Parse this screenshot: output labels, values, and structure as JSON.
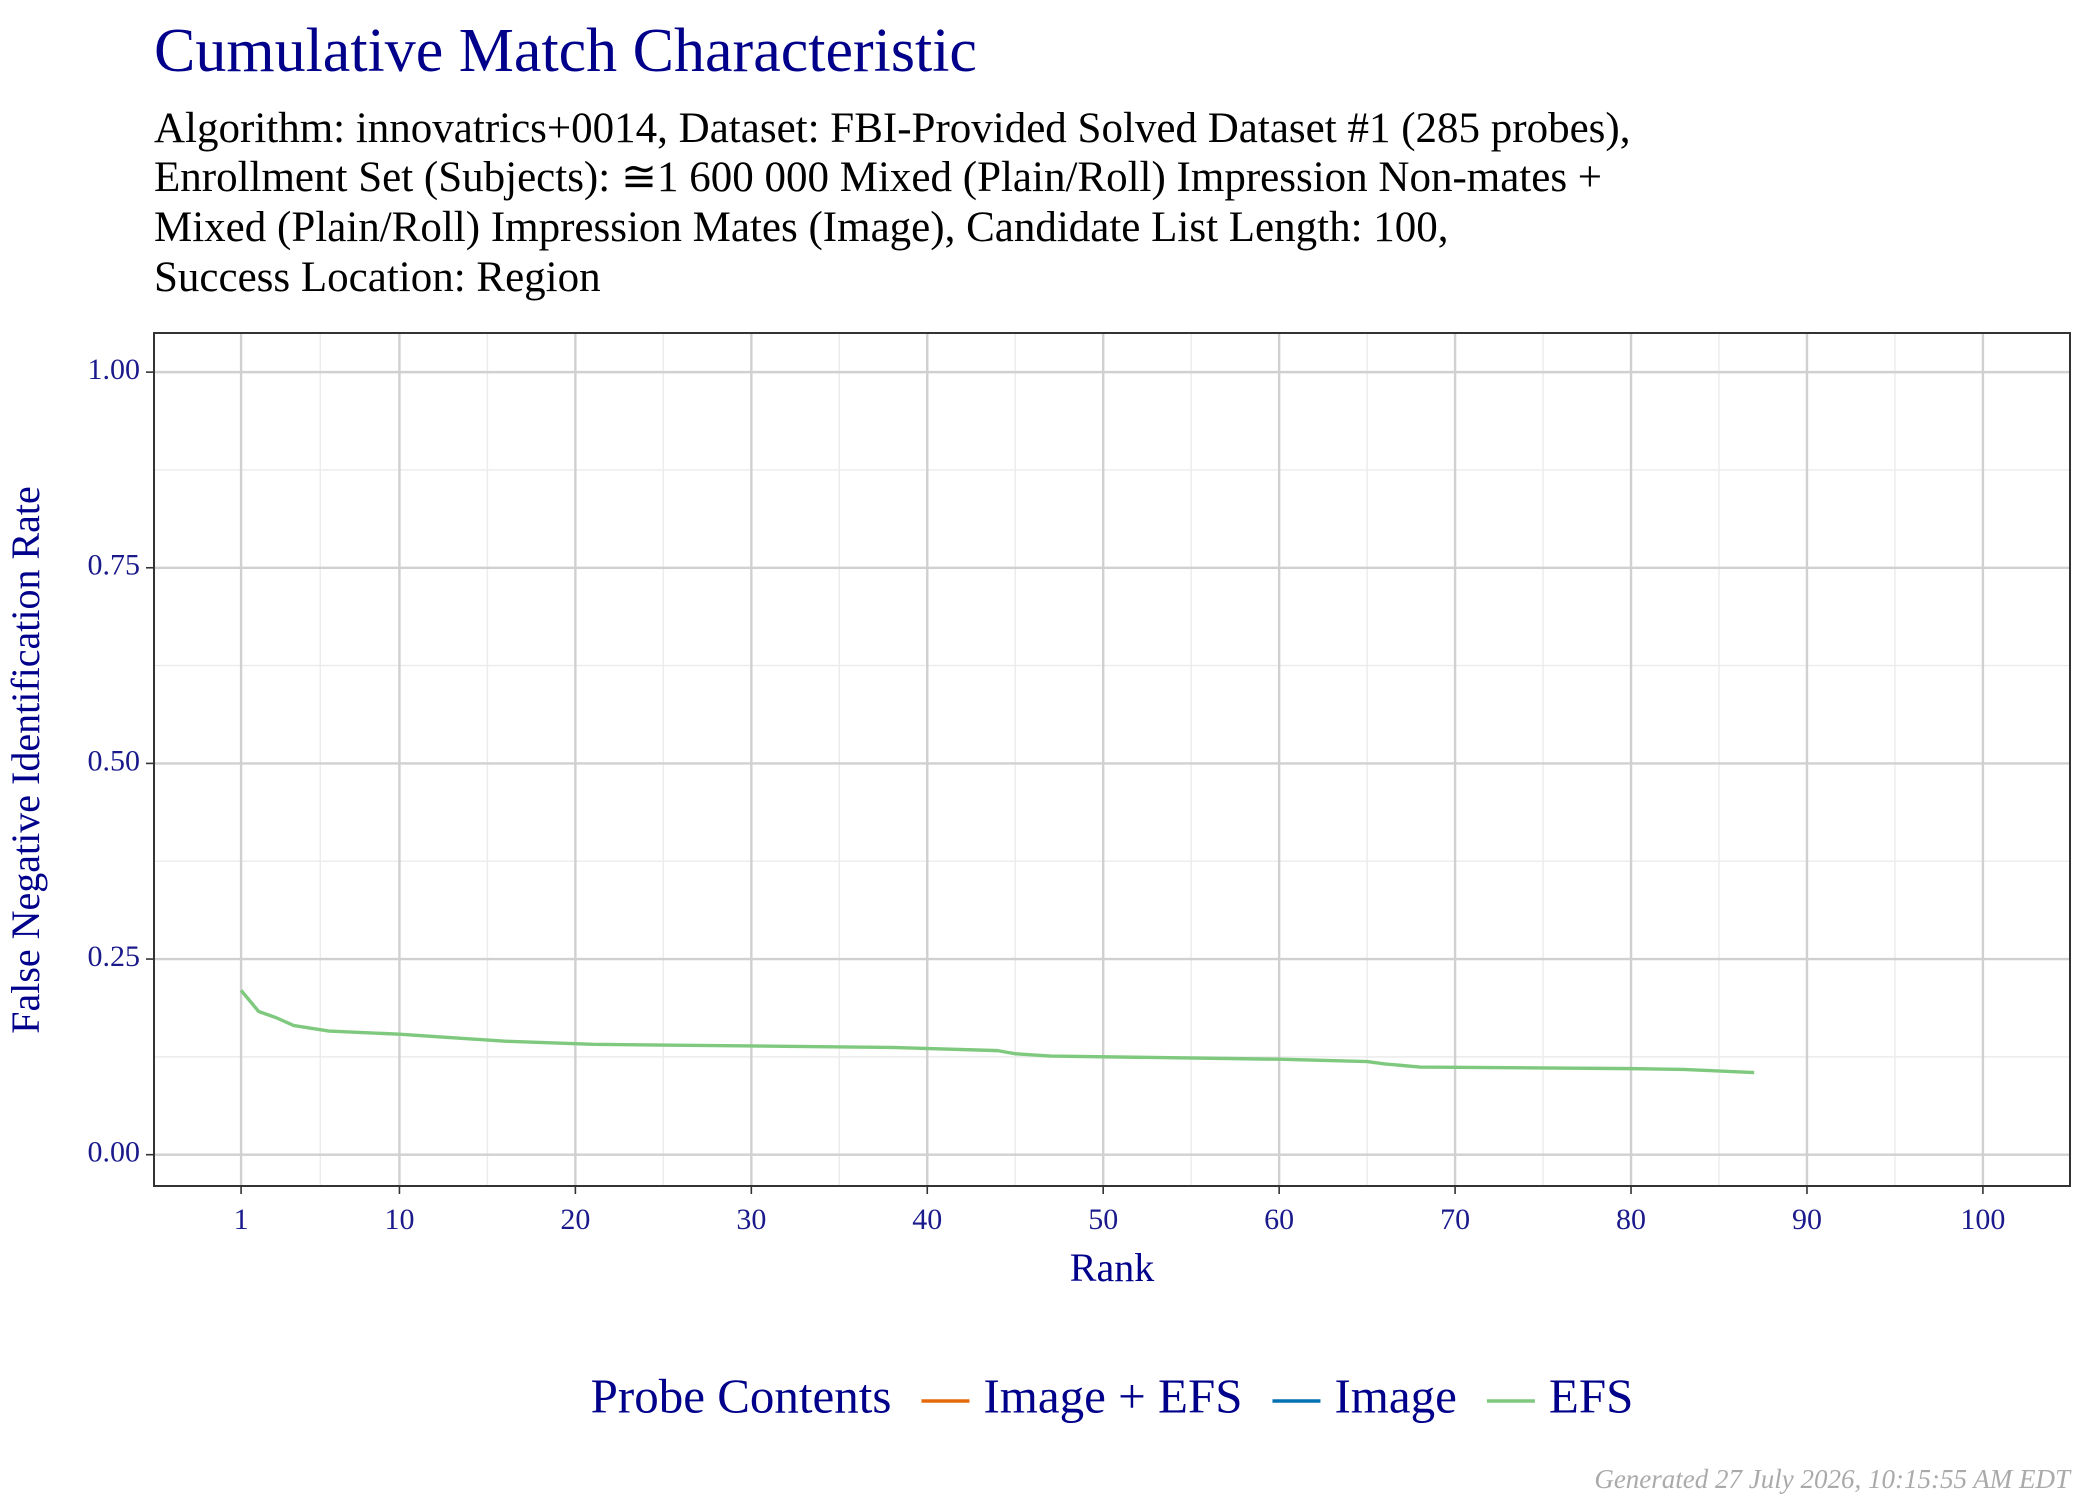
{
  "chart_data": {
    "type": "line",
    "title": "Cumulative Match Characteristic",
    "subtitle": [
      "Algorithm: innovatrics+0014, Dataset: FBI-Provided Solved Dataset #1 (285 probes),",
      "Enrollment Set (Subjects): ≅1 600 000 Mixed (Plain/Roll) Impression Non-mates +",
      "Mixed (Plain/Roll) Impression Mates (Image), Candidate List Length: 100,",
      "Success Location: Region"
    ],
    "x_label": "Rank",
    "y_label": "False Negative Identification Rate",
    "legend_title": "Probe Contents",
    "footer": "Generated 27 July 2026, 10:15:55 AM EDT",
    "grid": true,
    "xlim": [
      -3.95,
      104.95
    ],
    "ylim": [
      -0.04,
      1.05
    ],
    "xticks": [
      1,
      10,
      20,
      30,
      40,
      50,
      60,
      70,
      80,
      90,
      100
    ],
    "yticks": [
      {
        "value": 0,
        "label": "0.00"
      },
      0.25,
      {
        "value": 0.5,
        "label": "0.50"
      },
      0.75,
      {
        "value": 1,
        "label": "1.00"
      }
    ],
    "series": [
      {
        "name": "Image + EFS",
        "color": "#e66a0c",
        "x": [],
        "values": []
      },
      {
        "name": "Image",
        "color": "#0571b0",
        "x": [],
        "values": []
      },
      {
        "name": "EFS",
        "color": "#7fc97f",
        "x": [
          1,
          2,
          3,
          4,
          6,
          10,
          12,
          16,
          21,
          30,
          38,
          44,
          45,
          47,
          60,
          65,
          66,
          68,
          80,
          83,
          87
        ],
        "values": [
          0.21,
          0.183,
          0.175,
          0.165,
          0.158,
          0.154,
          0.151,
          0.145,
          0.141,
          0.139,
          0.137,
          0.133,
          0.129,
          0.126,
          0.122,
          0.119,
          0.116,
          0.112,
          0.11,
          0.109,
          0.105
        ]
      }
    ]
  }
}
